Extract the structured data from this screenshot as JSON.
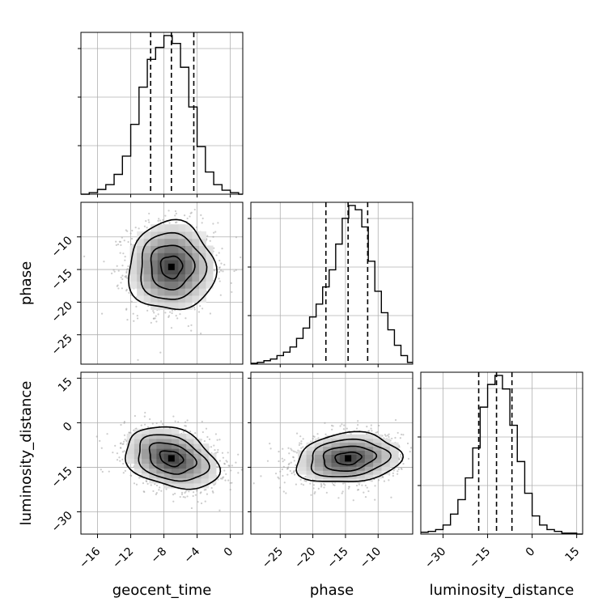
{
  "chart_data": {
    "type": "corner",
    "parameters": [
      "geocent_time",
      "phase",
      "luminosity_distance"
    ],
    "axes": {
      "geocent_time": {
        "range": [
          -18,
          1.5
        ],
        "ticks": [
          -16,
          -12,
          -8,
          -4,
          0
        ],
        "tick_labels": [
          "−16",
          "−12",
          "−8",
          "−4",
          "0"
        ]
      },
      "phase": {
        "range": [
          -29.5,
          -4.7
        ],
        "ticks": [
          -25,
          -20,
          -15,
          -10
        ],
        "tick_labels": [
          "−25",
          "−20",
          "−15",
          "−10"
        ]
      },
      "luminosity_distance": {
        "range": [
          -37.5,
          17
        ],
        "ticks": [
          -30,
          -15,
          0,
          15
        ],
        "tick_labels": [
          "−30",
          "−15",
          "0",
          "15"
        ]
      }
    },
    "grid": true,
    "histograms": {
      "geocent_time": {
        "bin_edges": [
          -18,
          -17,
          -16,
          -15,
          -14,
          -13,
          -12,
          -11,
          -10,
          -9,
          -8,
          -7,
          -6,
          -5,
          -4,
          -3,
          -2,
          -1,
          0,
          1,
          1.5
        ],
        "counts": [
          0,
          2,
          6,
          12,
          25,
          48,
          88,
          135,
          170,
          185,
          200,
          190,
          160,
          110,
          60,
          28,
          12,
          5,
          2,
          0
        ],
        "quantiles": [
          -9.6,
          -7.1,
          -4.4
        ]
      },
      "phase": {
        "bin_edges": [
          -29.5,
          -28.5,
          -27.5,
          -26.5,
          -25.5,
          -24.5,
          -23.5,
          -22.5,
          -21.5,
          -20.5,
          -19.5,
          -18.5,
          -17.5,
          -16.5,
          -15.5,
          -14.5,
          -13.5,
          -12.5,
          -11.5,
          -10.5,
          -9.5,
          -8.5,
          -7.5,
          -6.5,
          -5.5,
          -4.7
        ],
        "counts": [
          1,
          2,
          4,
          6,
          10,
          14,
          20,
          30,
          42,
          55,
          70,
          90,
          110,
          140,
          170,
          185,
          180,
          160,
          120,
          85,
          60,
          40,
          22,
          10,
          2
        ],
        "quantiles": [
          -18,
          -14.6,
          -11.6
        ]
      },
      "luminosity_distance": {
        "bin_edges": [
          -37.5,
          -35,
          -32.5,
          -30,
          -27.5,
          -25,
          -22.5,
          -20,
          -17.5,
          -15,
          -12.5,
          -10,
          -7.5,
          -5,
          -2.5,
          0,
          2.5,
          5,
          7.5,
          10,
          12.5,
          15,
          17
        ],
        "counts": [
          2,
          3,
          5,
          10,
          22,
          38,
          62,
          95,
          140,
          165,
          175,
          160,
          120,
          80,
          45,
          20,
          10,
          5,
          3,
          1,
          1,
          0
        ],
        "quantiles": [
          -18,
          -12,
          -6.8
        ]
      }
    },
    "density": {
      "phase_vs_geocent_time": {
        "x": "geocent_time",
        "y": "phase",
        "center": [
          -7.1,
          -14.6
        ],
        "sigma": [
          2.6,
          3.4
        ],
        "corr": 0.0
      },
      "luminosity_distance_vs_geocent_time": {
        "x": "geocent_time",
        "y": "luminosity_distance",
        "center": [
          -7.1,
          -12
        ],
        "sigma": [
          2.8,
          5.2
        ],
        "corr": -0.3
      },
      "luminosity_distance_vs_phase": {
        "x": "phase",
        "y": "luminosity_distance",
        "center": [
          -14.6,
          -12
        ],
        "sigma": [
          4.0,
          4.2
        ],
        "corr": 0.15
      }
    },
    "contour_levels_sigma": [
      0.5,
      1.0,
      1.5,
      2.0
    ]
  }
}
